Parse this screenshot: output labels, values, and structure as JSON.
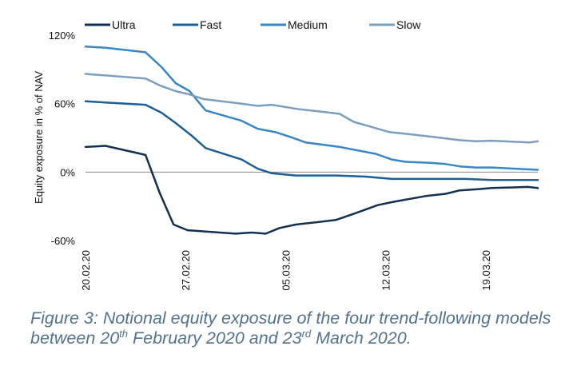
{
  "caption": {
    "part1": "Figure 3: Notional equity exposure of the four trend-following models between 20",
    "sup1": "th",
    "part2": " February 2020 and 23",
    "sup2": "rd",
    "part3": " March 2020."
  },
  "chart_data": {
    "type": "line",
    "title": "",
    "ylabel": "Equity exposure in % of NAV",
    "xlabel": "",
    "ylim": [
      -60,
      120
    ],
    "yticks": [
      {
        "value": -60,
        "label": "-60%"
      },
      {
        "value": 0,
        "label": "0%"
      },
      {
        "value": 60,
        "label": "60%"
      },
      {
        "value": 120,
        "label": "120%"
      }
    ],
    "xlim": [
      0,
      22.6
    ],
    "xticks": [
      {
        "value": 0,
        "label": "20.02.20"
      },
      {
        "value": 5,
        "label": "27.02.20"
      },
      {
        "value": 10,
        "label": "05.03.20"
      },
      {
        "value": 15,
        "label": "12.03.20"
      },
      {
        "value": 20,
        "label": "19.03.20"
      }
    ],
    "grid": false,
    "legend_position": "top",
    "series": [
      {
        "name": "Ultra",
        "color": "#13304f",
        "points": [
          [
            0,
            22
          ],
          [
            1,
            23
          ],
          [
            3,
            15
          ],
          [
            3.7,
            -18
          ],
          [
            4.4,
            -46
          ],
          [
            5.1,
            -51
          ],
          [
            7.5,
            -54
          ],
          [
            8.3,
            -53
          ],
          [
            9,
            -54
          ],
          [
            9.7,
            -49
          ],
          [
            10.5,
            -46
          ],
          [
            11.5,
            -44
          ],
          [
            12.5,
            -42
          ],
          [
            13.5,
            -36
          ],
          [
            14.6,
            -29
          ],
          [
            15.4,
            -26
          ],
          [
            17,
            -21
          ],
          [
            18,
            -19
          ],
          [
            18.7,
            -16
          ],
          [
            19.6,
            -15
          ],
          [
            20.3,
            -14
          ],
          [
            22.1,
            -13
          ],
          [
            22.6,
            -14
          ]
        ]
      },
      {
        "name": "Fast",
        "color": "#1d5e94",
        "points": [
          [
            0,
            62
          ],
          [
            3,
            59
          ],
          [
            3.8,
            52
          ],
          [
            4.5,
            43
          ],
          [
            5.3,
            32
          ],
          [
            6,
            21
          ],
          [
            7.8,
            11
          ],
          [
            8.6,
            3
          ],
          [
            9.3,
            -1
          ],
          [
            10.5,
            -3
          ],
          [
            12.5,
            -3
          ],
          [
            14,
            -4
          ],
          [
            15.3,
            -6
          ],
          [
            16.5,
            -6
          ],
          [
            18,
            -6
          ],
          [
            19,
            -6
          ],
          [
            20.3,
            -7
          ],
          [
            22.6,
            -7
          ]
        ]
      },
      {
        "name": "Medium",
        "color": "#3a86c4",
        "points": [
          [
            0,
            110
          ],
          [
            1,
            109
          ],
          [
            3,
            105
          ],
          [
            3.8,
            92
          ],
          [
            4.5,
            78
          ],
          [
            5.2,
            71
          ],
          [
            6,
            54
          ],
          [
            7.8,
            45
          ],
          [
            8.6,
            38
          ],
          [
            9.5,
            35
          ],
          [
            10.2,
            31
          ],
          [
            11,
            26
          ],
          [
            12.7,
            22
          ],
          [
            13.3,
            20
          ],
          [
            14.5,
            16
          ],
          [
            15.3,
            11
          ],
          [
            16,
            9
          ],
          [
            17.3,
            8
          ],
          [
            18,
            7
          ],
          [
            18.7,
            5
          ],
          [
            19.5,
            4
          ],
          [
            20.3,
            4
          ],
          [
            22.6,
            2
          ]
        ]
      },
      {
        "name": "Slow",
        "color": "#7d9fbd",
        "points": [
          [
            0,
            86
          ],
          [
            3,
            82
          ],
          [
            3.7,
            76
          ],
          [
            4.5,
            71
          ],
          [
            5.2,
            68
          ],
          [
            5.9,
            64
          ],
          [
            7.8,
            60
          ],
          [
            8.6,
            58
          ],
          [
            9.3,
            59
          ],
          [
            10.7,
            55
          ],
          [
            11.8,
            53
          ],
          [
            12.7,
            51
          ],
          [
            13.4,
            44
          ],
          [
            14.2,
            40
          ],
          [
            15.2,
            35
          ],
          [
            16.3,
            33
          ],
          [
            17.3,
            31
          ],
          [
            18.7,
            28
          ],
          [
            19.5,
            27
          ],
          [
            20.3,
            27.5
          ],
          [
            22.2,
            26
          ],
          [
            22.6,
            27
          ]
        ]
      }
    ]
  }
}
